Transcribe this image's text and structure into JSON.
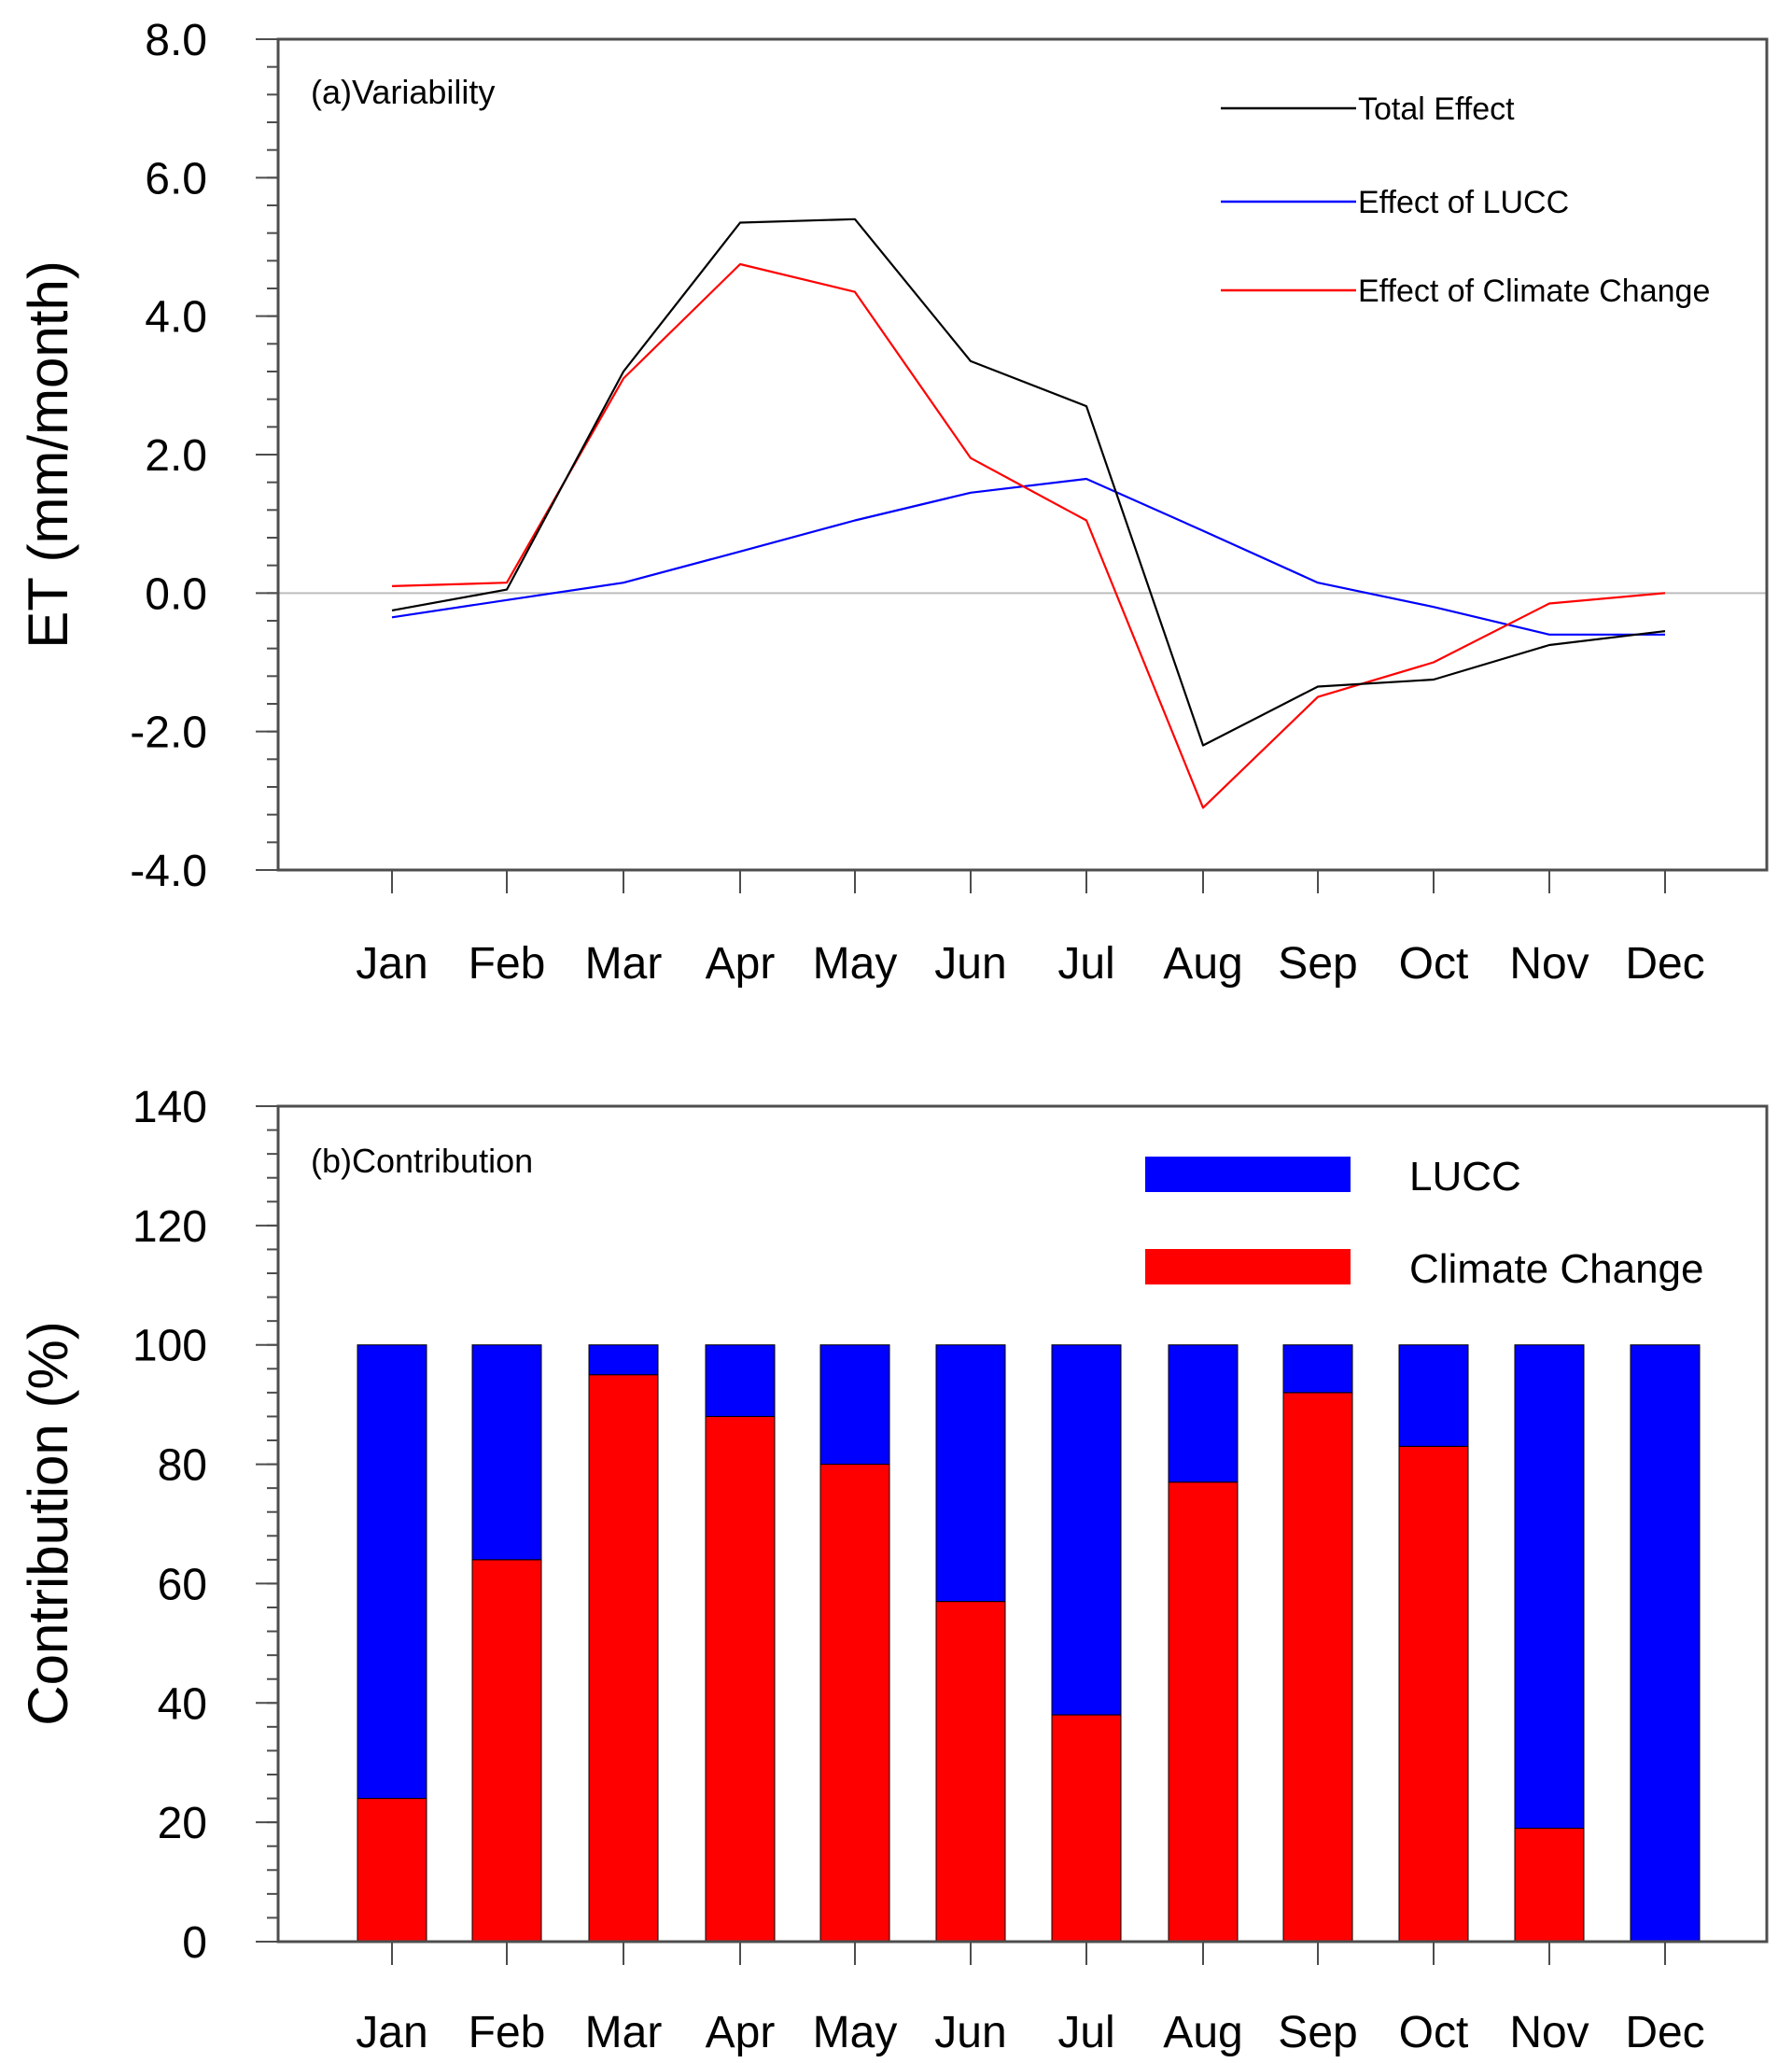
{
  "chart_data": [
    {
      "type": "line",
      "title": "(a)Variability",
      "ylabel": "ET (mm/month)",
      "xlabel": "",
      "ylim": [
        -4.0,
        8.0
      ],
      "yticks": [
        "8.0",
        "6.0",
        "4.0",
        "2.0",
        "0.0",
        "-2.0",
        "-4.0"
      ],
      "ytick_values": [
        8,
        6,
        4,
        2,
        0,
        -2,
        -4
      ],
      "categories": [
        "Jan",
        "Feb",
        "Mar",
        "Apr",
        "May",
        "Jun",
        "Jul",
        "Aug",
        "Sep",
        "Oct",
        "Nov",
        "Dec"
      ],
      "zero_line": true,
      "legend_position": "top-right",
      "series": [
        {
          "name": "Total Effect",
          "color": "#000000",
          "values": [
            -0.25,
            0.05,
            3.2,
            5.35,
            5.4,
            3.35,
            2.7,
            -2.2,
            -1.35,
            -1.25,
            -0.75,
            -0.55
          ]
        },
        {
          "name": "Effect of LUCC",
          "color": "#0000ff",
          "values": [
            -0.35,
            -0.1,
            0.15,
            0.6,
            1.05,
            1.45,
            1.65,
            0.9,
            0.15,
            -0.2,
            -0.6,
            -0.6
          ]
        },
        {
          "name": "Effect of Climate Change",
          "color": "#ff0000",
          "values": [
            0.1,
            0.15,
            3.1,
            4.75,
            4.35,
            1.95,
            1.05,
            -3.1,
            -1.5,
            -1.0,
            -0.15,
            0.0
          ]
        }
      ]
    },
    {
      "type": "bar",
      "stacked": true,
      "title": "(b)Contribution",
      "ylabel": "Contribution (%)",
      "xlabel": "",
      "ylim": [
        0,
        140
      ],
      "yticks": [
        "140",
        "120",
        "100",
        "80",
        "60",
        "40",
        "20",
        "0"
      ],
      "ytick_values": [
        140,
        120,
        100,
        80,
        60,
        40,
        20,
        0
      ],
      "categories": [
        "Jan",
        "Feb",
        "Mar",
        "Apr",
        "May",
        "Jun",
        "Jul",
        "Aug",
        "Sep",
        "Oct",
        "Nov",
        "Dec"
      ],
      "legend_position": "top-right",
      "series": [
        {
          "name": "Climate Change",
          "color": "#ff0000",
          "values": [
            24,
            64,
            95,
            88,
            80,
            57,
            38,
            77,
            92,
            83,
            19,
            0
          ]
        },
        {
          "name": "LUCC",
          "color": "#0000ff",
          "values": [
            76,
            36,
            5,
            12,
            20,
            43,
            62,
            23,
            8,
            17,
            81,
            100
          ]
        }
      ],
      "legend_order": [
        "LUCC",
        "Climate Change"
      ]
    }
  ]
}
